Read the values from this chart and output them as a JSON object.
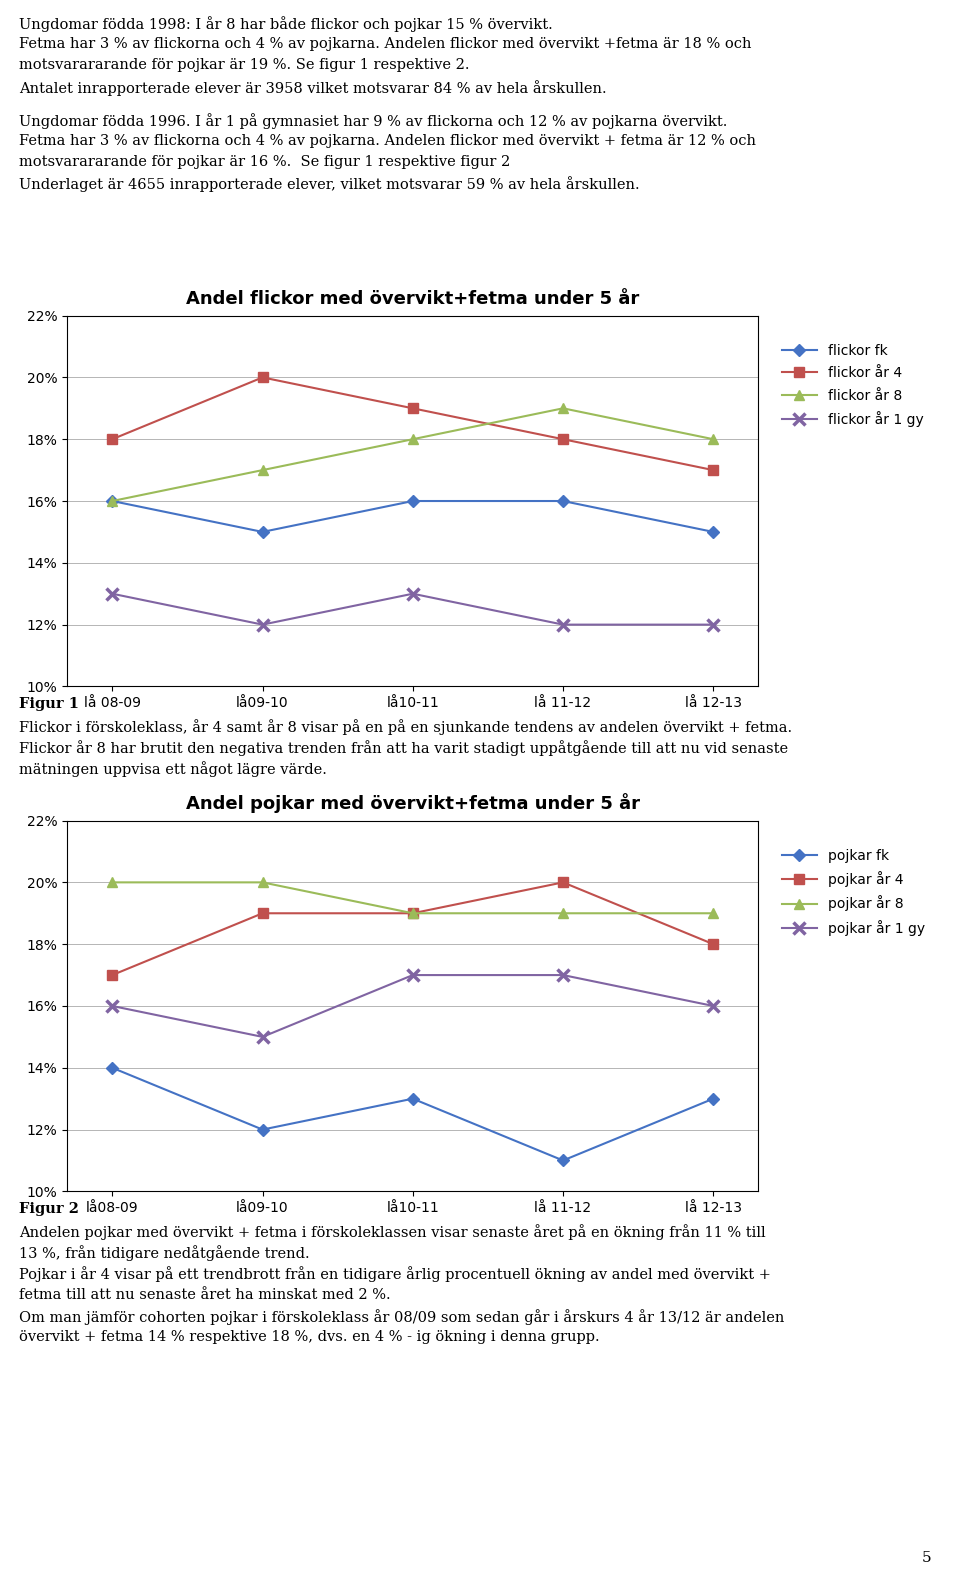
{
  "top_lines": [
    "Ungdomar födda 1998: I år 8 har både flickor och pojkar 15 % övervikt.",
    "Fetma har 3 % av flickorna och 4 % av pojkarna. Andelen flickor med övervikt +fetma är 18 % och",
    "motsvarararande för pojkar är 19 %. Se figur 1 respektive 2.",
    "Antalet inrapporterade elever är 3958 vilket motsvarar 84 % av hela årskullen.",
    "",
    "Ungdomar födda 1996. I år 1 på gymnasiet har 9 % av flickorna och 12 % av pojkarna övervikt.",
    "Fetma har 3 % av flickorna och 4 % av pojkarna. Andelen flickor med övervikt + fetma är 12 % och",
    "motsvarararande för pojkar är 16 %.  Se figur 1 respektive figur 2",
    "Underlaget är 4655 inrapporterade elever, vilket motsvarar 59 % av hela årskullen."
  ],
  "figur1_bold": "Figur 1",
  "figur1_lines": [
    "Flickor i förskoleklass, år 4 samt år 8 visar på en på en sjunkande tendens av andelen övervikt + fetma.",
    "Flickor år 8 har brutit den negativa trenden från att ha varit stadigt uppåtgående till att nu vid senaste",
    "mätningen uppvisa ett något lägre värde."
  ],
  "figur2_bold": "Figur 2",
  "figur2_lines": [
    "Andelen pojkar med övervikt + fetma i förskoleklassen visar senaste året på en ökning från 11 % till",
    "13 %, från tidigare nedåtgående trend.",
    "Pojkar i år 4 visar på ett trendbrott från en tidigare årlig procentuell ökning av andel med övervikt +",
    "fetma till att nu senaste året ha minskat med 2 %.",
    "Om man jämför cohorten pojkar i förskoleklass år 08/09 som sedan går i årskurs 4 år 13/12 är andelen",
    "övervikt + fetma 14 % respektive 18 %, dvs. en 4 % - ig ökning i denna grupp."
  ],
  "chart1": {
    "title": "Andel flickor med övervikt+fetma under 5 år",
    "x_labels": [
      "lå 08-09",
      "lå09-10",
      "lå10-11",
      "lå 11-12",
      "lå 12-13"
    ],
    "series": {
      "flickor fk": [
        16,
        15,
        16,
        16,
        15
      ],
      "flickor år 4": [
        18,
        20,
        19,
        18,
        17
      ],
      "flickor år 8": [
        16,
        17,
        18,
        19,
        18
      ],
      "flickor år 1 gy": [
        13,
        12,
        13,
        12,
        12
      ]
    },
    "colors": {
      "flickor fk": "#4472C4",
      "flickor år 4": "#C0504D",
      "flickor år 8": "#9BBB59",
      "flickor år 1 gy": "#8064A2"
    },
    "markers": {
      "flickor fk": "D",
      "flickor år 4": "s",
      "flickor år 8": "^",
      "flickor år 1 gy": "x"
    },
    "ylim": [
      10,
      22
    ],
    "yticks": [
      10,
      12,
      14,
      16,
      18,
      20,
      22
    ],
    "ytick_labels": [
      "10%",
      "12%",
      "14%",
      "16%",
      "18%",
      "20%",
      "22%"
    ]
  },
  "chart2": {
    "title": "Andel pojkar med övervikt+fetma under 5 år",
    "x_labels": [
      "lå08-09",
      "lå09-10",
      "lå10-11",
      "lå 11-12",
      "lå 12-13"
    ],
    "series": {
      "pojkar fk": [
        14,
        12,
        13,
        11,
        13
      ],
      "pojkar år 4": [
        17,
        19,
        19,
        20,
        18
      ],
      "pojkar år 8": [
        20,
        20,
        19,
        19,
        19
      ],
      "pojkar år 1 gy": [
        16,
        15,
        17,
        17,
        16
      ]
    },
    "colors": {
      "pojkar fk": "#4472C4",
      "pojkar år 4": "#C0504D",
      "pojkar år 8": "#9BBB59",
      "pojkar år 1 gy": "#8064A2"
    },
    "markers": {
      "pojkar fk": "D",
      "pojkar år 4": "s",
      "pojkar år 8": "^",
      "pojkar år 1 gy": "x"
    },
    "ylim": [
      10,
      22
    ],
    "yticks": [
      10,
      12,
      14,
      16,
      18,
      20,
      22
    ],
    "ytick_labels": [
      "10%",
      "12%",
      "14%",
      "16%",
      "18%",
      "20%",
      "22%"
    ]
  },
  "page_number": "5",
  "font_size_text": 10.5,
  "font_size_chart_title": 13,
  "font_size_ticks": 10,
  "font_size_legend": 10
}
